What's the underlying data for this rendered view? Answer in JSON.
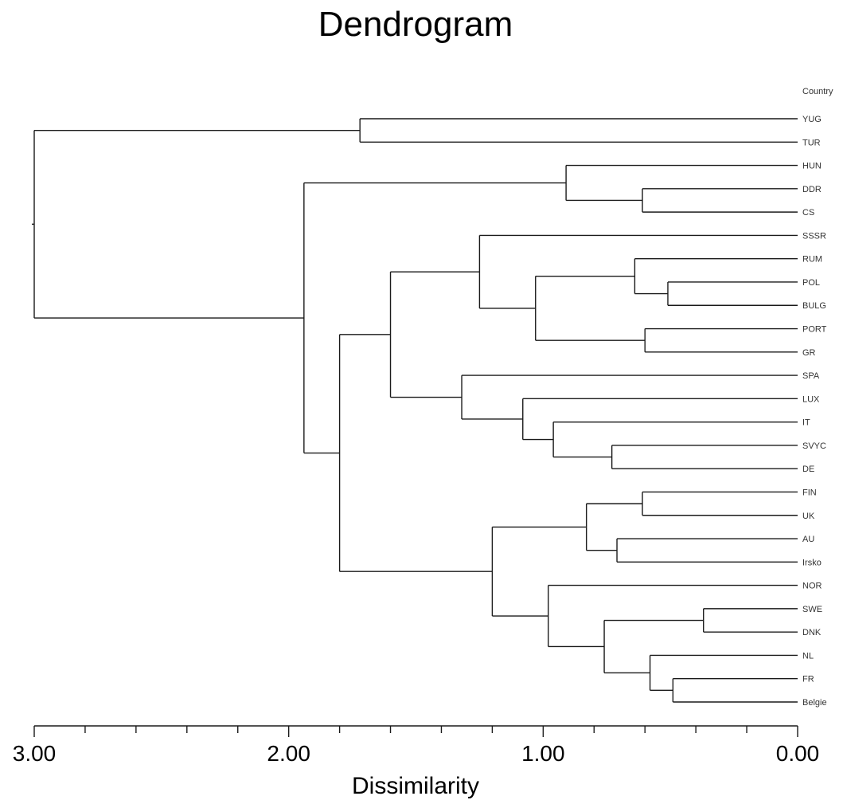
{
  "chart_data": {
    "type": "dendrogram",
    "title": "Dendrogram",
    "xlabel": "Dissimilarity",
    "label_header": "Country",
    "x_axis": {
      "min": 0.0,
      "max": 3.0,
      "reversed": true,
      "major_ticks": [
        3.0,
        2.0,
        1.0,
        0.0
      ],
      "major_tick_labels": [
        "3.00",
        "2.00",
        "1.00",
        "0.00"
      ],
      "minor_ticks": [
        2.8,
        2.6,
        2.4,
        2.2,
        1.8,
        1.6,
        1.4,
        1.2,
        0.8,
        0.6,
        0.4,
        0.2
      ]
    },
    "leaves": [
      "YUG",
      "TUR",
      "HUN",
      "DDR",
      "CS",
      "SSSR",
      "RUM",
      "POL",
      "BULG",
      "PORT",
      "GR",
      "SPA",
      "LUX",
      "IT",
      "SVYC",
      "DE",
      "FIN",
      "UK",
      "AU",
      "Irsko",
      "NOR",
      "SWE",
      "DNK",
      "NL",
      "FR",
      "Belgie"
    ],
    "merges": [
      {
        "id": "m1",
        "children": [
          "SWE",
          "DNK"
        ],
        "height": 0.37
      },
      {
        "id": "m2",
        "children": [
          "POL",
          "BULG"
        ],
        "height": 0.51
      },
      {
        "id": "m3",
        "children": [
          "FR",
          "Belgie"
        ],
        "height": 0.49
      },
      {
        "id": "m4",
        "children": [
          "NL",
          "m3"
        ],
        "height": 0.58
      },
      {
        "id": "m5",
        "children": [
          "PORT",
          "GR"
        ],
        "height": 0.6
      },
      {
        "id": "m6",
        "children": [
          "DDR",
          "CS"
        ],
        "height": 0.61
      },
      {
        "id": "m7",
        "children": [
          "FIN",
          "UK"
        ],
        "height": 0.61
      },
      {
        "id": "m8",
        "children": [
          "RUM",
          "m2"
        ],
        "height": 0.64
      },
      {
        "id": "m9",
        "children": [
          "AU",
          "Irsko"
        ],
        "height": 0.71
      },
      {
        "id": "m10",
        "children": [
          "SVYC",
          "DE"
        ],
        "height": 0.73
      },
      {
        "id": "m11",
        "children": [
          "m1",
          "m4"
        ],
        "height": 0.76
      },
      {
        "id": "m12",
        "children": [
          "m7",
          "m9"
        ],
        "height": 0.83
      },
      {
        "id": "m13",
        "children": [
          "HUN",
          "m6"
        ],
        "height": 0.91
      },
      {
        "id": "m14",
        "children": [
          "IT",
          "m10"
        ],
        "height": 0.96
      },
      {
        "id": "m15",
        "children": [
          "NOR",
          "m11"
        ],
        "height": 0.98
      },
      {
        "id": "m16",
        "children": [
          "m8",
          "m5"
        ],
        "height": 1.03
      },
      {
        "id": "m17",
        "children": [
          "LUX",
          "m14"
        ],
        "height": 1.08
      },
      {
        "id": "m18",
        "children": [
          "m12",
          "m15"
        ],
        "height": 1.2
      },
      {
        "id": "m19",
        "children": [
          "SSSR",
          "m16"
        ],
        "height": 1.25
      },
      {
        "id": "m20",
        "children": [
          "SPA",
          "m17"
        ],
        "height": 1.32
      },
      {
        "id": "m21",
        "children": [
          "m19",
          "m20"
        ],
        "height": 1.6
      },
      {
        "id": "m22",
        "children": [
          "YUG",
          "TUR"
        ],
        "height": 1.72
      },
      {
        "id": "m23",
        "children": [
          "m21",
          "m18"
        ],
        "height": 1.8
      },
      {
        "id": "m24",
        "children": [
          "m13",
          "m23"
        ],
        "height": 1.94
      },
      {
        "id": "m25",
        "children": [
          "m22",
          "m24"
        ],
        "height": 3.0
      }
    ]
  }
}
